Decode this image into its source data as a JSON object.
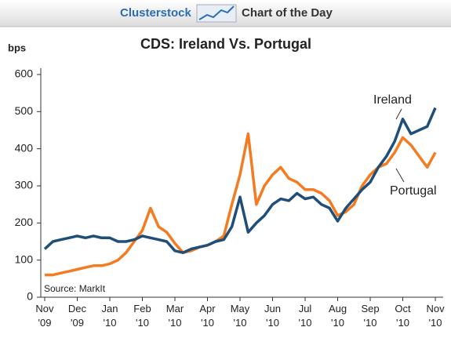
{
  "chart_data": {
    "type": "line",
    "brand": "Clusterstock",
    "tagline": "Chart of the Day",
    "title": "CDS: Ireland Vs. Portugal",
    "y_label": "bps",
    "source": "Source: MarkIt",
    "annotations": [
      "Ireland",
      "Portugal"
    ],
    "x": [
      0,
      0.25,
      0.5,
      0.75,
      1,
      1.25,
      1.5,
      1.75,
      2,
      2.25,
      2.5,
      2.75,
      3,
      3.25,
      3.5,
      3.75,
      4,
      4.25,
      4.5,
      4.75,
      5,
      5.25,
      5.5,
      5.75,
      6,
      6.25,
      6.5,
      6.75,
      7,
      7.25,
      7.5,
      7.75,
      8,
      8.25,
      8.5,
      8.75,
      9,
      9.25,
      9.5,
      9.75,
      10,
      10.25,
      10.5,
      10.75,
      11,
      11.25,
      11.5,
      11.75,
      12
    ],
    "series": [
      {
        "name": "Ireland",
        "color": "#1f4e79",
        "values": [
          130,
          150,
          155,
          160,
          165,
          160,
          165,
          160,
          160,
          150,
          150,
          155,
          165,
          160,
          155,
          150,
          125,
          120,
          130,
          135,
          140,
          150,
          155,
          190,
          270,
          175,
          200,
          220,
          250,
          265,
          260,
          280,
          265,
          270,
          250,
          240,
          205,
          240,
          265,
          290,
          310,
          350,
          380,
          420,
          480,
          440,
          450,
          460,
          510
        ]
      },
      {
        "name": "Portugal",
        "color": "#f47b20",
        "values": [
          60,
          60,
          65,
          70,
          75,
          80,
          85,
          85,
          90,
          100,
          120,
          150,
          180,
          240,
          190,
          175,
          145,
          120,
          125,
          135,
          140,
          150,
          165,
          250,
          330,
          440,
          250,
          300,
          330,
          350,
          320,
          310,
          290,
          290,
          280,
          260,
          220,
          230,
          250,
          300,
          330,
          350,
          360,
          390,
          430,
          410,
          380,
          350,
          390
        ]
      }
    ],
    "xlim": [
      -0.12,
      12.24
    ],
    "xticks": [
      {
        "value": 0,
        "label": "Nov '09"
      },
      {
        "value": 1,
        "label": "Dec '09"
      },
      {
        "value": 2,
        "label": "Jan '10"
      },
      {
        "value": 3,
        "label": "Feb '10"
      },
      {
        "value": 4,
        "label": "Mar '10"
      },
      {
        "value": 5,
        "label": "Apr '10"
      },
      {
        "value": 6,
        "label": "May '10"
      },
      {
        "value": 7,
        "label": "Jun '10"
      },
      {
        "value": 8,
        "label": "Jul '10"
      },
      {
        "value": 9,
        "label": "Aug '10"
      },
      {
        "value": 10,
        "label": "Sep '10"
      },
      {
        "value": 11,
        "label": "Oct '10"
      },
      {
        "value": 12,
        "label": "Nov '10"
      }
    ],
    "ylim": [
      0,
      600
    ],
    "yticks": [
      0,
      100,
      200,
      300,
      400,
      500,
      600
    ]
  }
}
